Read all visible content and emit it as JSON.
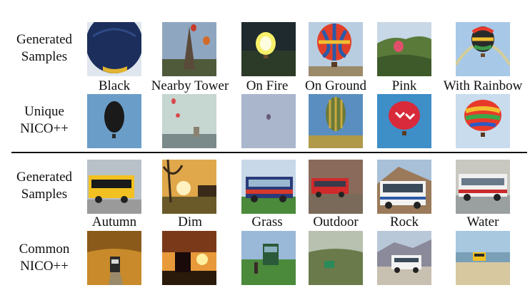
{
  "figure": {
    "sections": [
      {
        "name": "balloons",
        "rows": [
          {
            "label_lines": [
              "Generated",
              "Samples"
            ],
            "images": [
              "hot-air balloon, black",
              "hot-air balloon near tower",
              "hot-air balloon on fire",
              "hot-air balloon on ground",
              "pink hot-air balloon",
              "hot-air balloon with rainbow"
            ]
          },
          {
            "label_lines": [
              "Unique",
              "NICO++"
            ],
            "images": [
              "dark balloon in blue sky",
              "small balloons over city",
              "tiny balloon in haze",
              "striped balloon over field",
              "red heart balloon",
              "rainbow balloon"
            ]
          }
        ],
        "captions": [
          "Black",
          "Nearby Tower",
          "On Fire",
          "On Ground",
          "Pink",
          "With Rainbow"
        ]
      },
      {
        "name": "buses",
        "rows": [
          {
            "label_lines": [
              "Generated",
              "Samples"
            ],
            "images": [
              "yellow bus autumn",
              "bus at dusk",
              "bus on grass",
              "red bus outdoor",
              "white bus near rocks",
              "bus in water"
            ]
          },
          {
            "label_lines": [
              "Common",
              "NICO++"
            ],
            "images": [
              "bus on autumn road",
              "bus sunset silhouette",
              "bus on grass field",
              "small bus on hill",
              "coach on rocky road",
              "bus on beach"
            ]
          }
        ],
        "captions": [
          "Autumn",
          "Dim",
          "Grass",
          "Outdoor",
          "Rock",
          "Water"
        ]
      }
    ]
  }
}
